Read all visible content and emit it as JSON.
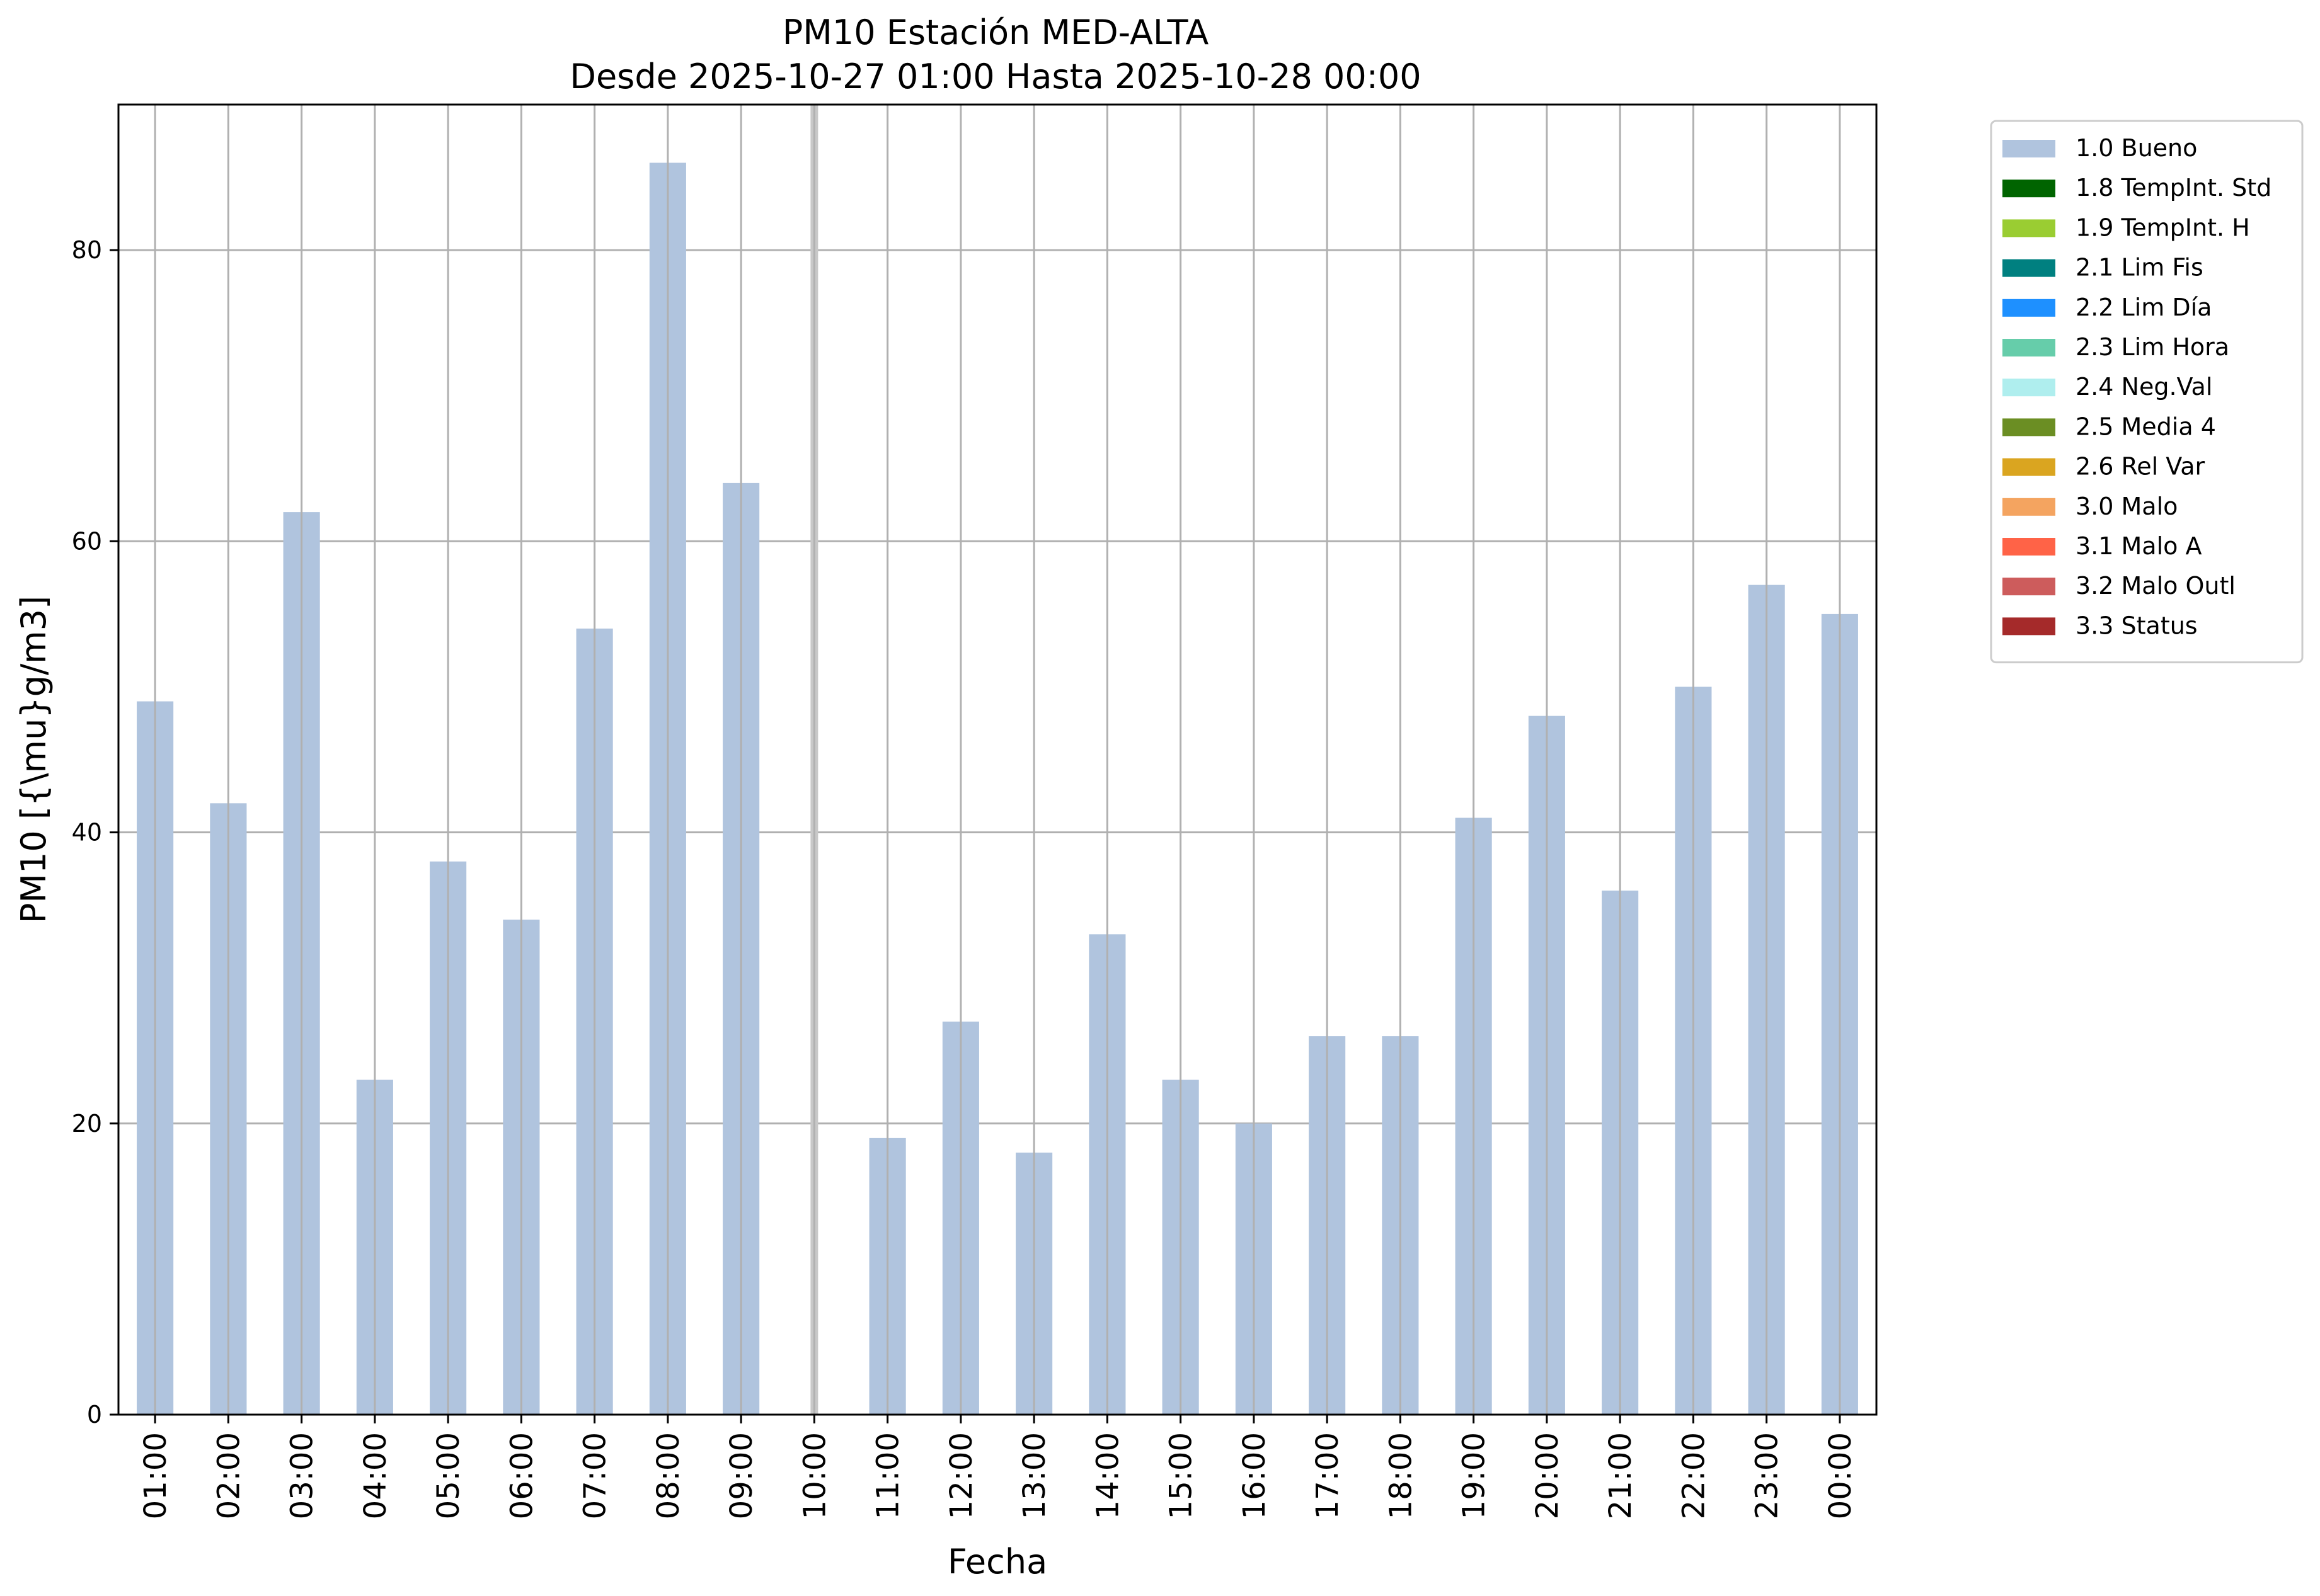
{
  "chart_data": {
    "type": "bar",
    "title": "PM10 Estación MED-ALTA",
    "subtitle": "Desde 2025-10-27 01:00 Hasta 2025-10-28 00:00",
    "xlabel": "Fecha",
    "ylabel": "PM10 [{\\mu}g/m3]",
    "ylim": [
      0,
      90
    ],
    "yticks": [
      0,
      20,
      40,
      60,
      80
    ],
    "grid": true,
    "legend_placement": "outside-top-right",
    "categories": [
      "01:00",
      "02:00",
      "03:00",
      "04:00",
      "05:00",
      "06:00",
      "07:00",
      "08:00",
      "09:00",
      "10:00",
      "11:00",
      "12:00",
      "13:00",
      "14:00",
      "15:00",
      "16:00",
      "17:00",
      "18:00",
      "19:00",
      "20:00",
      "21:00",
      "22:00",
      "23:00",
      "00:00"
    ],
    "series": [
      {
        "name": "1.0 Bueno",
        "color": "#b0c4de",
        "values": [
          49,
          42,
          62,
          23,
          38,
          34,
          54,
          86,
          64,
          null,
          19,
          27,
          18,
          33,
          23,
          20,
          26,
          26,
          41,
          48,
          36,
          50,
          57,
          55
        ]
      }
    ],
    "missing_marker_categories": [
      "10:00"
    ],
    "legend": [
      {
        "label": "1.0 Bueno",
        "color": "#b0c4de"
      },
      {
        "label": "1.8 TempInt. Std",
        "color": "#006400"
      },
      {
        "label": "1.9 TempInt. H",
        "color": "#9acd32"
      },
      {
        "label": "2.1 Lim Fis",
        "color": "#008080"
      },
      {
        "label": "2.2 Lim Día",
        "color": "#1e90ff"
      },
      {
        "label": "2.3 Lim Hora",
        "color": "#66cdaa"
      },
      {
        "label": "2.4 Neg.Val",
        "color": "#afeeee"
      },
      {
        "label": "2.5 Media 4",
        "color": "#6b8e23"
      },
      {
        "label": "2.6 Rel Var",
        "color": "#daa520"
      },
      {
        "label": "3.0 Malo",
        "color": "#f4a460"
      },
      {
        "label": "3.1 Malo A",
        "color": "#ff6347"
      },
      {
        "label": "3.2 Malo Outl",
        "color": "#cd5c5c"
      },
      {
        "label": "3.3 Status",
        "color": "#a52a2a"
      }
    ]
  }
}
